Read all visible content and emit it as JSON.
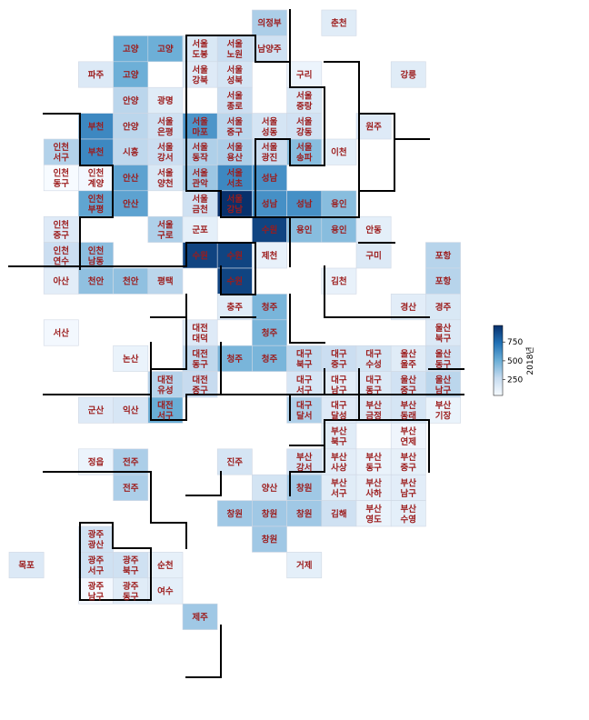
{
  "chart_data": {
    "type": "heatmap",
    "colorbar": {
      "label": "2018년",
      "ticks": [
        250,
        500,
        750
      ],
      "range": [
        40,
        970
      ]
    },
    "cells": [
      {
        "row": 0,
        "col": 7,
        "label": [
          "의정부"
        ],
        "value": 340
      },
      {
        "row": 0,
        "col": 9,
        "label": [
          "춘천"
        ],
        "value": 150
      },
      {
        "row": 1,
        "col": 3,
        "label": [
          "고양"
        ],
        "value": 500
      },
      {
        "row": 1,
        "col": 4,
        "label": [
          "고양"
        ],
        "value": 500
      },
      {
        "row": 1,
        "col": 5,
        "label": [
          "서울",
          "도봉"
        ],
        "value": 180
      },
      {
        "row": 1,
        "col": 6,
        "label": [
          "서울",
          "노원"
        ],
        "value": 260
      },
      {
        "row": 1,
        "col": 7,
        "label": [
          "남양주"
        ],
        "value": 230
      },
      {
        "row": 2,
        "col": 2,
        "label": [
          "파주"
        ],
        "value": 170
      },
      {
        "row": 2,
        "col": 3,
        "label": [
          "고양"
        ],
        "value": 500
      },
      {
        "row": 2,
        "col": 5,
        "label": [
          "서울",
          "강북"
        ],
        "value": 160
      },
      {
        "row": 2,
        "col": 6,
        "label": [
          "서울",
          "성북"
        ],
        "value": 200
      },
      {
        "row": 2,
        "col": 8,
        "label": [
          "구리"
        ],
        "value": 90
      },
      {
        "row": 2,
        "col": 11,
        "label": [
          "강릉"
        ],
        "value": 150
      },
      {
        "row": 3,
        "col": 3,
        "label": [
          "안양"
        ],
        "value": 300
      },
      {
        "row": 3,
        "col": 4,
        "label": [
          "광명"
        ],
        "value": 150
      },
      {
        "row": 3,
        "col": 6,
        "label": [
          "서울",
          "종로"
        ],
        "value": 240
      },
      {
        "row": 3,
        "col": 8,
        "label": [
          "서울",
          "중랑"
        ],
        "value": 180
      },
      {
        "row": 4,
        "col": 2,
        "label": [
          "부천"
        ],
        "value": 650
      },
      {
        "row": 4,
        "col": 3,
        "label": [
          "안양"
        ],
        "value": 300
      },
      {
        "row": 4,
        "col": 4,
        "label": [
          "서울",
          "은평"
        ],
        "value": 230
      },
      {
        "row": 4,
        "col": 5,
        "label": [
          "서울",
          "마포"
        ],
        "value": 600
      },
      {
        "row": 4,
        "col": 6,
        "label": [
          "서울",
          "중구"
        ],
        "value": 300
      },
      {
        "row": 4,
        "col": 7,
        "label": [
          "서울",
          "성동"
        ],
        "value": 200
      },
      {
        "row": 4,
        "col": 8,
        "label": [
          "서울",
          "강동"
        ],
        "value": 220
      },
      {
        "row": 4,
        "col": 10,
        "label": [
          "원주"
        ],
        "value": 160
      },
      {
        "row": 5,
        "col": 1,
        "label": [
          "인천",
          "서구"
        ],
        "value": 320
      },
      {
        "row": 5,
        "col": 2,
        "label": [
          "부천"
        ],
        "value": 650
      },
      {
        "row": 5,
        "col": 3,
        "label": [
          "시흥"
        ],
        "value": 290
      },
      {
        "row": 5,
        "col": 4,
        "label": [
          "서울",
          "강서"
        ],
        "value": 250
      },
      {
        "row": 5,
        "col": 5,
        "label": [
          "서울",
          "동작"
        ],
        "value": 330
      },
      {
        "row": 5,
        "col": 6,
        "label": [
          "서울",
          "용산"
        ],
        "value": 340
      },
      {
        "row": 5,
        "col": 7,
        "label": [
          "서울",
          "광진"
        ],
        "value": 260
      },
      {
        "row": 5,
        "col": 8,
        "label": [
          "서울",
          "송파"
        ],
        "value": 430
      },
      {
        "row": 5,
        "col": 9,
        "label": [
          "이천"
        ],
        "value": 130
      },
      {
        "row": 6,
        "col": 1,
        "label": [
          "인천",
          "동구"
        ],
        "value": 40
      },
      {
        "row": 6,
        "col": 2,
        "label": [
          "인천",
          "계양"
        ],
        "value": 60
      },
      {
        "row": 6,
        "col": 3,
        "label": [
          "안산"
        ],
        "value": 550
      },
      {
        "row": 6,
        "col": 4,
        "label": [
          "서울",
          "양천"
        ],
        "value": 180
      },
      {
        "row": 6,
        "col": 5,
        "label": [
          "서울",
          "관악"
        ],
        "value": 380
      },
      {
        "row": 6,
        "col": 6,
        "label": [
          "서울",
          "서초"
        ],
        "value": 650
      },
      {
        "row": 6,
        "col": 7,
        "label": [
          "성남"
        ],
        "value": 620
      },
      {
        "row": 7,
        "col": 2,
        "label": [
          "인천",
          "부평"
        ],
        "value": 540
      },
      {
        "row": 7,
        "col": 3,
        "label": [
          "안산"
        ],
        "value": 550
      },
      {
        "row": 7,
        "col": 5,
        "label": [
          "서울",
          "금천"
        ],
        "value": 230
      },
      {
        "row": 7,
        "col": 6,
        "label": [
          "서울",
          "강남"
        ],
        "value": 970
      },
      {
        "row": 7,
        "col": 7,
        "label": [
          "성남"
        ],
        "value": 620
      },
      {
        "row": 7,
        "col": 8,
        "label": [
          "성남"
        ],
        "value": 620
      },
      {
        "row": 7,
        "col": 9,
        "label": [
          "용인"
        ],
        "value": 430
      },
      {
        "row": 8,
        "col": 1,
        "label": [
          "인천",
          "중구"
        ],
        "value": 160
      },
      {
        "row": 8,
        "col": 4,
        "label": [
          "서울",
          "구로"
        ],
        "value": 330
      },
      {
        "row": 8,
        "col": 5,
        "label": [
          "군포"
        ],
        "value": 130
      },
      {
        "row": 8,
        "col": 7,
        "label": [
          "수원"
        ],
        "value": 900
      },
      {
        "row": 8,
        "col": 8,
        "label": [
          "용인"
        ],
        "value": 430
      },
      {
        "row": 8,
        "col": 9,
        "label": [
          "용인"
        ],
        "value": 430
      },
      {
        "row": 8,
        "col": 10,
        "label": [
          "안동"
        ],
        "value": 130
      },
      {
        "row": 9,
        "col": 1,
        "label": [
          "인천",
          "연수"
        ],
        "value": 250
      },
      {
        "row": 9,
        "col": 2,
        "label": [
          "인천",
          "남동"
        ],
        "value": 420
      },
      {
        "row": 9,
        "col": 5,
        "label": [
          "수원"
        ],
        "value": 900
      },
      {
        "row": 9,
        "col": 6,
        "label": [
          "수원"
        ],
        "value": 900
      },
      {
        "row": 9,
        "col": 7,
        "label": [
          "제천"
        ],
        "value": 110
      },
      {
        "row": 9,
        "col": 10,
        "label": [
          "구미"
        ],
        "value": 170
      },
      {
        "row": 9,
        "col": 12,
        "label": [
          "포항"
        ],
        "value": 310
      },
      {
        "row": 10,
        "col": 1,
        "label": [
          "아산"
        ],
        "value": 140
      },
      {
        "row": 10,
        "col": 2,
        "label": [
          "천안"
        ],
        "value": 410
      },
      {
        "row": 10,
        "col": 3,
        "label": [
          "천안"
        ],
        "value": 410
      },
      {
        "row": 10,
        "col": 4,
        "label": [
          "평택"
        ],
        "value": 300
      },
      {
        "row": 10,
        "col": 6,
        "label": [
          "수원"
        ],
        "value": 900
      },
      {
        "row": 10,
        "col": 9,
        "label": [
          "김천"
        ],
        "value": 110
      },
      {
        "row": 10,
        "col": 12,
        "label": [
          "포항"
        ],
        "value": 310
      },
      {
        "row": 11,
        "col": 6,
        "label": [
          "충주"
        ],
        "value": 150
      },
      {
        "row": 11,
        "col": 7,
        "label": [
          "청주"
        ],
        "value": 470
      },
      {
        "row": 11,
        "col": 11,
        "label": [
          "경산"
        ],
        "value": 140
      },
      {
        "row": 11,
        "col": 12,
        "label": [
          "경주"
        ],
        "value": 180
      },
      {
        "row": 12,
        "col": 1,
        "label": [
          "서산"
        ],
        "value": 60
      },
      {
        "row": 12,
        "col": 5,
        "label": [
          "대전",
          "대덕"
        ],
        "value": 160
      },
      {
        "row": 12,
        "col": 7,
        "label": [
          "청주"
        ],
        "value": 470
      },
      {
        "row": 12,
        "col": 12,
        "label": [
          "울산",
          "북구"
        ],
        "value": 170
      },
      {
        "row": 13,
        "col": 3,
        "label": [
          "논산"
        ],
        "value": 100
      },
      {
        "row": 13,
        "col": 5,
        "label": [
          "대전",
          "동구"
        ],
        "value": 290
      },
      {
        "row": 13,
        "col": 6,
        "label": [
          "청주"
        ],
        "value": 470
      },
      {
        "row": 13,
        "col": 7,
        "label": [
          "청주"
        ],
        "value": 470
      },
      {
        "row": 13,
        "col": 8,
        "label": [
          "대구",
          "북구"
        ],
        "value": 290
      },
      {
        "row": 13,
        "col": 9,
        "label": [
          "대구",
          "중구"
        ],
        "value": 250
      },
      {
        "row": 13,
        "col": 10,
        "label": [
          "대구",
          "수성"
        ],
        "value": 210
      },
      {
        "row": 13,
        "col": 11,
        "label": [
          "울산",
          "울주"
        ],
        "value": 150
      },
      {
        "row": 13,
        "col": 12,
        "label": [
          "울산",
          "동구"
        ],
        "value": 230
      },
      {
        "row": 14,
        "col": 4,
        "label": [
          "대전",
          "유성"
        ],
        "value": 310
      },
      {
        "row": 14,
        "col": 5,
        "label": [
          "대전",
          "중구"
        ],
        "value": 270
      },
      {
        "row": 14,
        "col": 8,
        "label": [
          "대구",
          "서구"
        ],
        "value": 190
      },
      {
        "row": 14,
        "col": 9,
        "label": [
          "대구",
          "남구"
        ],
        "value": 140
      },
      {
        "row": 14,
        "col": 10,
        "label": [
          "대구",
          "동구"
        ],
        "value": 170
      },
      {
        "row": 14,
        "col": 11,
        "label": [
          "울산",
          "중구"
        ],
        "value": 220
      },
      {
        "row": 14,
        "col": 12,
        "label": [
          "울산",
          "남구"
        ],
        "value": 300
      },
      {
        "row": 15,
        "col": 2,
        "label": [
          "군산"
        ],
        "value": 160
      },
      {
        "row": 15,
        "col": 3,
        "label": [
          "익산"
        ],
        "value": 190
      },
      {
        "row": 15,
        "col": 4,
        "label": [
          "대전",
          "서구"
        ],
        "value": 510
      },
      {
        "row": 15,
        "col": 8,
        "label": [
          "대구",
          "달서"
        ],
        "value": 330
      },
      {
        "row": 15,
        "col": 9,
        "label": [
          "대구",
          "달성"
        ],
        "value": 160
      },
      {
        "row": 15,
        "col": 10,
        "label": [
          "부산",
          "금정"
        ],
        "value": 180
      },
      {
        "row": 15,
        "col": 11,
        "label": [
          "부산",
          "동래"
        ],
        "value": 200
      },
      {
        "row": 15,
        "col": 12,
        "label": [
          "부산",
          "기장"
        ],
        "value": 100
      },
      {
        "row": 16,
        "col": 9,
        "label": [
          "부산",
          "북구"
        ],
        "value": 150
      },
      {
        "row": 16,
        "col": 11,
        "label": [
          "부산",
          "연제"
        ],
        "value": 80
      },
      {
        "row": 17,
        "col": 2,
        "label": [
          "정읍"
        ],
        "value": 90
      },
      {
        "row": 17,
        "col": 3,
        "label": [
          "전주"
        ],
        "value": 340
      },
      {
        "row": 17,
        "col": 6,
        "label": [
          "진주"
        ],
        "value": 200
      },
      {
        "row": 17,
        "col": 8,
        "label": [
          "부산",
          "강서"
        ],
        "value": 220
      },
      {
        "row": 17,
        "col": 9,
        "label": [
          "부산",
          "사상"
        ],
        "value": 140
      },
      {
        "row": 17,
        "col": 10,
        "label": [
          "부산",
          "동구"
        ],
        "value": 100
      },
      {
        "row": 17,
        "col": 11,
        "label": [
          "부산",
          "중구"
        ],
        "value": 120
      },
      {
        "row": 18,
        "col": 3,
        "label": [
          "전주"
        ],
        "value": 340
      },
      {
        "row": 18,
        "col": 7,
        "label": [
          "양산"
        ],
        "value": 210
      },
      {
        "row": 18,
        "col": 8,
        "label": [
          "창원"
        ],
        "value": 370
      },
      {
        "row": 18,
        "col": 9,
        "label": [
          "부산",
          "서구"
        ],
        "value": 150
      },
      {
        "row": 18,
        "col": 10,
        "label": [
          "부산",
          "사하"
        ],
        "value": 120
      },
      {
        "row": 18,
        "col": 11,
        "label": [
          "부산",
          "남구"
        ],
        "value": 140
      },
      {
        "row": 19,
        "col": 6,
        "label": [
          "창원"
        ],
        "value": 370
      },
      {
        "row": 19,
        "col": 7,
        "label": [
          "창원"
        ],
        "value": 370
      },
      {
        "row": 19,
        "col": 8,
        "label": [
          "창원"
        ],
        "value": 370
      },
      {
        "row": 19,
        "col": 9,
        "label": [
          "김해"
        ],
        "value": 230
      },
      {
        "row": 19,
        "col": 10,
        "label": [
          "부산",
          "영도"
        ],
        "value": 100
      },
      {
        "row": 19,
        "col": 11,
        "label": [
          "부산",
          "수영"
        ],
        "value": 130
      },
      {
        "row": 20,
        "col": 2,
        "label": [
          "광주",
          "광산"
        ],
        "value": 220
      },
      {
        "row": 20,
        "col": 7,
        "label": [
          "창원"
        ],
        "value": 370
      },
      {
        "row": 21,
        "col": 0,
        "label": [
          "목포"
        ],
        "value": 170
      },
      {
        "row": 21,
        "col": 2,
        "label": [
          "광주",
          "서구"
        ],
        "value": 230
      },
      {
        "row": 21,
        "col": 3,
        "label": [
          "광주",
          "북구"
        ],
        "value": 230
      },
      {
        "row": 21,
        "col": 4,
        "label": [
          "순천"
        ],
        "value": 120
      },
      {
        "row": 21,
        "col": 8,
        "label": [
          "거제"
        ],
        "value": 130
      },
      {
        "row": 22,
        "col": 2,
        "label": [
          "광주",
          "남구"
        ],
        "value": 60
      },
      {
        "row": 22,
        "col": 3,
        "label": [
          "광주",
          "동구"
        ],
        "value": 150
      },
      {
        "row": 22,
        "col": 4,
        "label": [
          "여수"
        ],
        "value": 130
      },
      {
        "row": 23,
        "col": 5,
        "label": [
          "제주"
        ],
        "value": 370
      }
    ]
  }
}
